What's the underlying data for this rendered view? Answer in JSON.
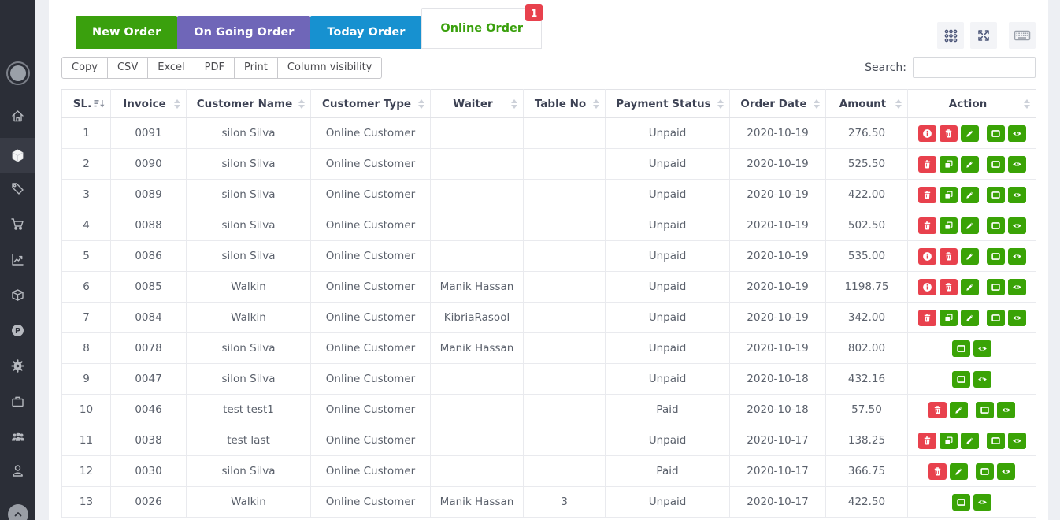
{
  "colors": {
    "tab_green": "#3aa00d",
    "tab_purple": "#6f66b8",
    "tab_blue": "#1791d0",
    "badge_red": "#e8414d",
    "action_green": "#3aa306",
    "action_red": "#e8414d",
    "sidebar_bg": "#2b2e37",
    "sidebar_active": "#383b45",
    "page_bg": "#edeff3"
  },
  "sidebar": {
    "icons": [
      "avatar",
      "home-icon",
      "cube-icon (active)",
      "tag-icon",
      "cart-icon",
      "chart-line-icon",
      "package-icon",
      "pos-p-icon",
      "gear-icon",
      "briefcase-icon",
      "users-icon",
      "person-icon",
      "scroll-top-icon"
    ]
  },
  "tabs": [
    {
      "label": "New Order"
    },
    {
      "label": "On Going Order"
    },
    {
      "label": "Today Order"
    },
    {
      "label": "Online Order",
      "badge": "1",
      "active": true
    }
  ],
  "header_icons": [
    "grid-icon",
    "expand-icon",
    "keyboard-icon"
  ],
  "toolbar": {
    "buttons": [
      "Copy",
      "CSV",
      "Excel",
      "PDF",
      "Print",
      "Column visibility"
    ]
  },
  "search": {
    "label": "Search:",
    "value": ""
  },
  "table": {
    "columns": [
      "SL.",
      "Invoice",
      "Customer Name",
      "Customer Type",
      "Waiter",
      "Table No",
      "Payment Status",
      "Order Date",
      "Amount",
      "Action"
    ],
    "rows": [
      {
        "sl": "1",
        "invoice": "0091",
        "customer": "silon Silva",
        "type": "Online Customer",
        "waiter": "",
        "table_no": "",
        "payment": "Unpaid",
        "date": "2020-10-19",
        "amount": "276.50",
        "actions": [
          "info",
          "delete",
          "edit",
          "panel",
          "view"
        ]
      },
      {
        "sl": "2",
        "invoice": "0090",
        "customer": "silon Silva",
        "type": "Online Customer",
        "waiter": "",
        "table_no": "",
        "payment": "Unpaid",
        "date": "2020-10-19",
        "amount": "525.50",
        "actions": [
          "delete",
          "duplicate",
          "edit",
          "panel",
          "view"
        ]
      },
      {
        "sl": "3",
        "invoice": "0089",
        "customer": "silon Silva",
        "type": "Online Customer",
        "waiter": "",
        "table_no": "",
        "payment": "Unpaid",
        "date": "2020-10-19",
        "amount": "422.00",
        "actions": [
          "delete",
          "duplicate",
          "edit",
          "panel",
          "view"
        ]
      },
      {
        "sl": "4",
        "invoice": "0088",
        "customer": "silon Silva",
        "type": "Online Customer",
        "waiter": "",
        "table_no": "",
        "payment": "Unpaid",
        "date": "2020-10-19",
        "amount": "502.50",
        "actions": [
          "delete",
          "duplicate",
          "edit",
          "panel",
          "view"
        ]
      },
      {
        "sl": "5",
        "invoice": "0086",
        "customer": "silon Silva",
        "type": "Online Customer",
        "waiter": "",
        "table_no": "",
        "payment": "Unpaid",
        "date": "2020-10-19",
        "amount": "535.00",
        "actions": [
          "info",
          "delete",
          "edit",
          "panel",
          "view"
        ]
      },
      {
        "sl": "6",
        "invoice": "0085",
        "customer": "Walkin",
        "type": "Online Customer",
        "waiter": "Manik Hassan",
        "table_no": "",
        "payment": "Unpaid",
        "date": "2020-10-19",
        "amount": "1198.75",
        "actions": [
          "info",
          "delete",
          "edit",
          "panel",
          "view"
        ]
      },
      {
        "sl": "7",
        "invoice": "0084",
        "customer": "Walkin",
        "type": "Online Customer",
        "waiter": "KibriaRasool",
        "table_no": "",
        "payment": "Unpaid",
        "date": "2020-10-19",
        "amount": "342.00",
        "actions": [
          "delete",
          "duplicate",
          "edit",
          "panel",
          "view"
        ]
      },
      {
        "sl": "8",
        "invoice": "0078",
        "customer": "silon Silva",
        "type": "Online Customer",
        "waiter": "Manik Hassan",
        "table_no": "",
        "payment": "Unpaid",
        "date": "2020-10-19",
        "amount": "802.00",
        "actions": [
          "panel",
          "view"
        ]
      },
      {
        "sl": "9",
        "invoice": "0047",
        "customer": "silon Silva",
        "type": "Online Customer",
        "waiter": "",
        "table_no": "",
        "payment": "Unpaid",
        "date": "2020-10-18",
        "amount": "432.16",
        "actions": [
          "panel",
          "view"
        ]
      },
      {
        "sl": "10",
        "invoice": "0046",
        "customer": "test test1",
        "type": "Online Customer",
        "waiter": "",
        "table_no": "",
        "payment": "Paid",
        "date": "2020-10-18",
        "amount": "57.50",
        "actions": [
          "delete",
          "edit",
          "panel",
          "view"
        ]
      },
      {
        "sl": "11",
        "invoice": "0038",
        "customer": "test last",
        "type": "Online Customer",
        "waiter": "",
        "table_no": "",
        "payment": "Unpaid",
        "date": "2020-10-17",
        "amount": "138.25",
        "actions": [
          "delete",
          "duplicate",
          "edit",
          "panel",
          "view"
        ]
      },
      {
        "sl": "12",
        "invoice": "0030",
        "customer": "silon Silva",
        "type": "Online Customer",
        "waiter": "",
        "table_no": "",
        "payment": "Paid",
        "date": "2020-10-17",
        "amount": "366.75",
        "actions": [
          "delete",
          "edit",
          "panel",
          "view"
        ]
      },
      {
        "sl": "13",
        "invoice": "0026",
        "customer": "Walkin",
        "type": "Online Customer",
        "waiter": "Manik Hassan",
        "table_no": "3",
        "payment": "Unpaid",
        "date": "2020-10-17",
        "amount": "422.50",
        "actions": [
          "panel",
          "view"
        ]
      }
    ]
  }
}
